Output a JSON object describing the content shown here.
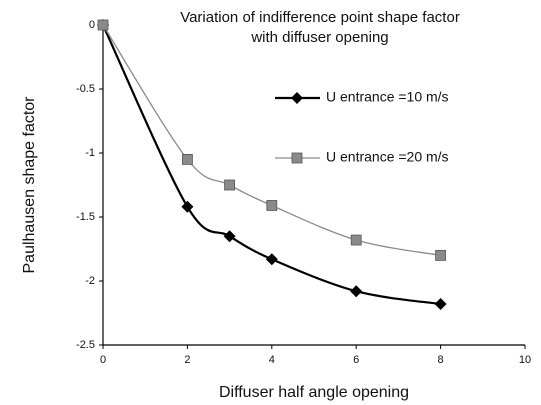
{
  "chart_data": {
    "type": "line",
    "title_lines": [
      "Variation of indifference point shape factor",
      "with diffuser opening"
    ],
    "x_label": "Diffuser half angle opening",
    "y_label": "Paulhausen shape factor",
    "series": [
      {
        "name": "U entrance =10 m/s",
        "color": "#000000",
        "marker": "diamond",
        "x": [
          0,
          2,
          3,
          4,
          6,
          8
        ],
        "values": [
          0,
          -1.42,
          -1.65,
          -1.83,
          -2.08,
          -2.18
        ]
      },
      {
        "name": "U entrance =20 m/s",
        "color": "#8a8a8a",
        "marker": "square",
        "x": [
          0,
          2,
          3,
          4,
          6,
          8
        ],
        "values": [
          0,
          -1.05,
          -1.25,
          -1.41,
          -1.68,
          -1.8
        ]
      }
    ],
    "xlim": [
      0,
      10
    ],
    "xticks": [
      0,
      2,
      4,
      6,
      8,
      10
    ],
    "ylim": [
      -2.5,
      0
    ],
    "yticks": [
      0,
      -0.5,
      -1,
      -1.5,
      -2,
      -2.5
    ],
    "grid": false,
    "legend": "upper right"
  }
}
